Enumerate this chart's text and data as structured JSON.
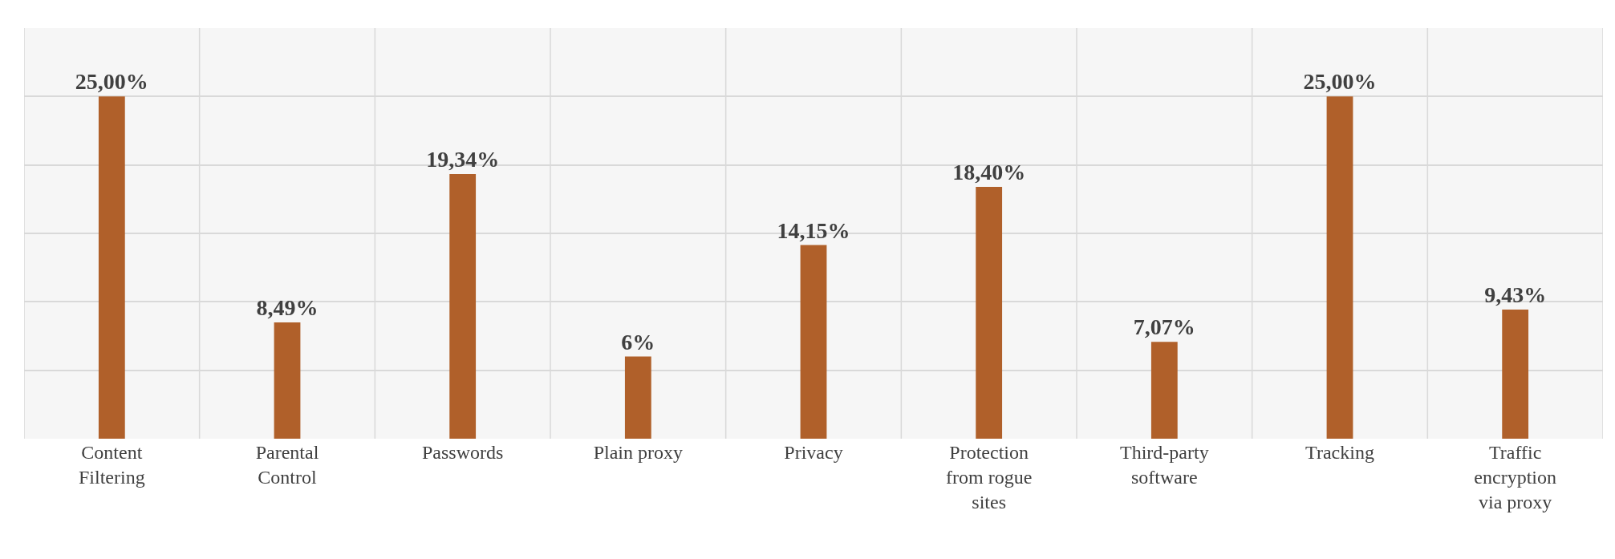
{
  "chart_data": {
    "type": "bar",
    "categories": [
      "Content Filtering",
      "Parental Control",
      "Passwords",
      "Plain proxy",
      "Privacy",
      "Protection from rogue sites",
      "Third-party software",
      "Tracking",
      "Traffic encryption via proxy"
    ],
    "values": [
      25,
      8.49,
      19.34,
      6,
      14.15,
      18.4,
      7.07,
      25,
      9.43
    ],
    "value_labels": [
      "25,00%",
      "8,49%",
      "19,34%",
      "6%",
      "14,15%",
      "18,40%",
      "7,07%",
      "25,00%",
      "9,43%"
    ],
    "color": "#b0602a",
    "ylim": [
      0,
      30
    ],
    "yticks": [
      {
        "value": 0,
        "label": null
      },
      {
        "value": 5,
        "label": null
      },
      {
        "value": 10,
        "label": null
      },
      {
        "value": 15,
        "label": null
      },
      {
        "value": 20,
        "label": null
      },
      {
        "value": 25,
        "label": null
      },
      {
        "value": 30,
        "label": null
      }
    ],
    "grid": true,
    "tick_labels": "x",
    "legend": false
  }
}
